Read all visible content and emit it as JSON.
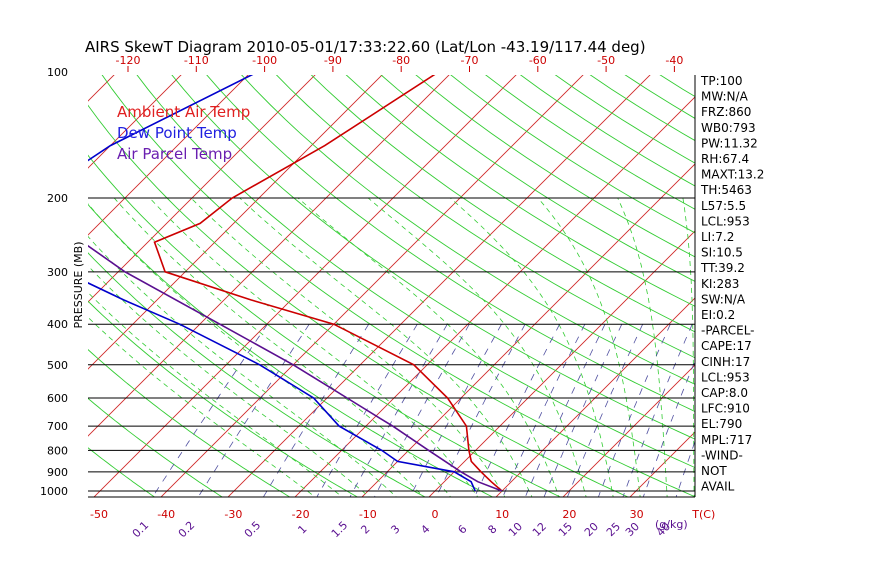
{
  "chart_data": {
    "type": "line",
    "title": "AIRS SkewT Diagram 2010-05-01/17:33:22.60 (Lat/Lon -43.19/117.44 deg)",
    "ylabel": "PRESSURE (MB)",
    "ylim": [
      1050,
      100
    ],
    "yscale": "log",
    "y_ticks": [
      "100",
      "200",
      "300",
      "400",
      "500",
      "600",
      "700",
      "800",
      "900",
      "1000"
    ],
    "bottom_temp_ticks": [
      "-50",
      "-40",
      "-30",
      "-20",
      "-10",
      "0",
      "10",
      "20",
      "30",
      "T(C)"
    ],
    "top_temp_ticks": [
      "-120",
      "-110",
      "-100",
      "-90",
      "-80",
      "-70",
      "-60",
      "-50",
      "-40"
    ],
    "mixing_ratio_ticks": [
      "0.1",
      "0.2",
      "0.5",
      "1",
      "1.5",
      "2",
      "3",
      "4",
      "6",
      "8",
      "10",
      "12",
      "15",
      "20",
      "25",
      "30",
      "40"
    ],
    "mixing_ratio_unit": "(g/kg)",
    "legend": [
      {
        "label": "Ambient Air Temp",
        "color": "#e02020"
      },
      {
        "label": "Dew Point Temp",
        "color": "#2020e0"
      },
      {
        "label": "Air Parcel Temp",
        "color": "#6a1fb0"
      }
    ],
    "series": [
      {
        "name": "Ambient Air Temp",
        "color": "#cc0000",
        "points": [
          [
            100,
            -62
          ],
          [
            150,
            -68
          ],
          [
            200,
            -74
          ],
          [
            230,
            -75
          ],
          [
            255,
            -79
          ],
          [
            300,
            -73
          ],
          [
            350,
            -56
          ],
          [
            400,
            -40
          ],
          [
            500,
            -22
          ],
          [
            600,
            -12
          ],
          [
            700,
            -5
          ],
          [
            800,
            -1
          ],
          [
            850,
            1
          ],
          [
            900,
            4
          ],
          [
            950,
            7
          ],
          [
            1000,
            10
          ]
        ]
      },
      {
        "name": "Dew Point Temp",
        "color": "#0000cc",
        "points": [
          [
            100,
            -89
          ],
          [
            150,
            -100
          ],
          [
            200,
            -104
          ],
          [
            250,
            -98
          ],
          [
            300,
            -88
          ],
          [
            350,
            -75
          ],
          [
            400,
            -63
          ],
          [
            500,
            -45
          ],
          [
            600,
            -32
          ],
          [
            700,
            -24
          ],
          [
            800,
            -14
          ],
          [
            850,
            -10
          ],
          [
            900,
            0
          ],
          [
            950,
            4
          ],
          [
            1000,
            6
          ]
        ]
      },
      {
        "name": "Air Parcel Temp",
        "color": "#5a1090",
        "points": [
          [
            100,
            -123
          ],
          [
            150,
            -115
          ],
          [
            200,
            -103
          ],
          [
            250,
            -91
          ],
          [
            300,
            -79
          ],
          [
            400,
            -57
          ],
          [
            500,
            -40
          ],
          [
            600,
            -27
          ],
          [
            700,
            -16
          ],
          [
            800,
            -7
          ],
          [
            900,
            1
          ],
          [
            950,
            5
          ],
          [
            1000,
            10
          ]
        ]
      }
    ],
    "grid": true
  },
  "indices": [
    "TP:100",
    "MW:N/A",
    "FRZ:860",
    "WB0:793",
    "PW:11.32",
    "RH:67.4",
    "MAXT:13.2",
    "TH:5463",
    "L57:5.5",
    "LCL:953",
    "LI:7.2",
    "SI:10.5",
    "TT:39.2",
    "KI:283",
    "SW:N/A",
    "EI:0.2",
    "-PARCEL-",
    "CAPE:17",
    "CINH:17",
    "LCL:953",
    "CAP:8.0",
    "LFC:910",
    "EL:790",
    "MPL:717",
    "-WIND-",
    "NOT",
    "AVAIL"
  ],
  "colors": {
    "isotherm": "#d02828",
    "dry_adiabat": "#33cc33",
    "moist_adiabat": "#33cc33",
    "mixing_ratio": "#5050a0",
    "isobar": "#000000"
  }
}
